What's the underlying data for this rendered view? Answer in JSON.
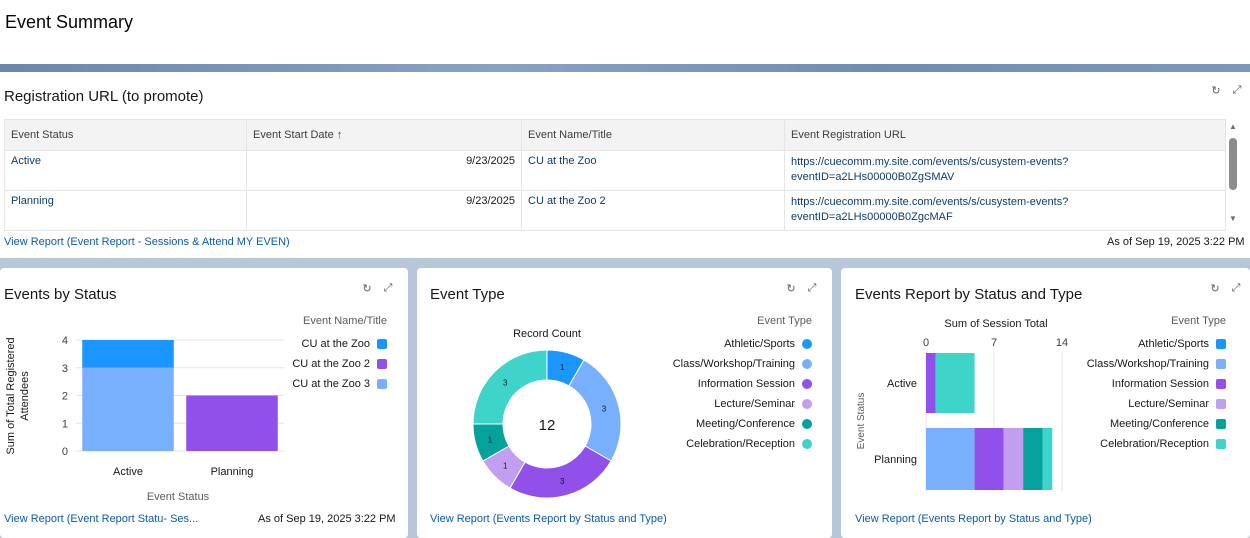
{
  "page": {
    "title": "Event Summary"
  },
  "icons": {
    "refresh": "refresh-icon",
    "expand": "expand-icon"
  },
  "registration": {
    "title": "Registration URL (to promote)",
    "columns": [
      "Event Status",
      "Event Start Date",
      "Event Name/Title",
      "Event Registration URL"
    ],
    "sort_indicator": "↑",
    "rows": [
      {
        "status": "Active",
        "start_date": "9/23/2025",
        "name": "CU at the Zoo",
        "url_line1": "https://cuecomm.my.site.com/events/s/cusystem-events?",
        "url_line2": "eventID=a2LHs00000B0ZgSMAV"
      },
      {
        "status": "Planning",
        "start_date": "9/23/2025",
        "name": "CU at the Zoo 2",
        "url_line1": "https://cuecomm.my.site.com/events/s/cusystem-events?",
        "url_line2": "eventID=a2LHs00000B0ZgcMAF"
      }
    ],
    "footer_link": "View Report (Event Report - Sessions & Attend MY EVEN)",
    "as_of": "As of Sep 19, 2025 3:22 PM"
  },
  "events_by_status": {
    "title": "Events by Status",
    "footer_link": "View Report (Event Report Statu- Ses...",
    "as_of": "As of Sep 19, 2025 3:22 PM",
    "chart_data": {
      "type": "bar",
      "stacked": true,
      "categories": [
        "Active",
        "Planning"
      ],
      "series": [
        {
          "name": "CU at the Zoo",
          "values": [
            1,
            0
          ],
          "color": "#1b96ff"
        },
        {
          "name": "CU at the Zoo 2",
          "values": [
            0,
            2
          ],
          "color": "#9050e9"
        },
        {
          "name": "CU at the Zoo 3",
          "values": [
            3,
            0
          ],
          "color": "#78b0fd"
        }
      ],
      "xlabel": "Event Status",
      "ylabel_line1": "Sum of Total Registered",
      "ylabel_line2": "Attendees",
      "yticks": [
        "0",
        "1",
        "2",
        "3",
        "4"
      ],
      "ylim": [
        0,
        4
      ],
      "legend_title": "Event Name/Title",
      "legend_placement": "right",
      "grid": true
    }
  },
  "event_type": {
    "title": "Event Type",
    "footer_link": "View Report (Events Report by Status and Type)",
    "chart_data": {
      "type": "pie",
      "donut": true,
      "title": "Record Count",
      "total": "12",
      "slices": [
        {
          "name": "Athletic/Sports",
          "value": 1,
          "label": "1",
          "color": "#1b96ff"
        },
        {
          "name": "Class/Workshop/Training",
          "value": 3,
          "label": "3",
          "color": "#78b0fd"
        },
        {
          "name": "Information Session",
          "value": 3,
          "label": "3",
          "color": "#9050e9"
        },
        {
          "name": "Lecture/Seminar",
          "value": 1,
          "label": "1",
          "color": "#c29ef1"
        },
        {
          "name": "Meeting/Conference",
          "value": 1,
          "label": "1",
          "color": "#04a29b"
        },
        {
          "name": "Celebration/Reception",
          "value": 3,
          "label": "3",
          "color": "#3fd4ca"
        }
      ],
      "legend_title": "Event Type",
      "legend_placement": "right"
    }
  },
  "status_type": {
    "title": "Events Report by Status and Type",
    "footer_link": "View Report (Events Report by Status and Type)",
    "chart_data": {
      "type": "bar",
      "orientation": "horizontal",
      "stacked": true,
      "title": "Sum of Session Total",
      "categories": [
        "Active",
        "Planning"
      ],
      "series": [
        {
          "name": "Athletic/Sports",
          "values": [
            0,
            0
          ],
          "color": "#1b96ff"
        },
        {
          "name": "Class/Workshop/Training",
          "values": [
            0,
            5
          ],
          "color": "#78b0fd"
        },
        {
          "name": "Information Session",
          "values": [
            1,
            3
          ],
          "color": "#9050e9"
        },
        {
          "name": "Lecture/Seminar",
          "values": [
            0,
            2
          ],
          "color": "#c29ef1"
        },
        {
          "name": "Meeting/Conference",
          "values": [
            0,
            2
          ],
          "color": "#04a29b"
        },
        {
          "name": "Celebration/Reception",
          "values": [
            4,
            1
          ],
          "color": "#3fd4ca"
        }
      ],
      "xticks": [
        "0",
        "7",
        "14"
      ],
      "xlim": [
        0,
        14
      ],
      "ylabel": "Event Status",
      "legend_title": "Event Type",
      "legend_placement": "right"
    }
  }
}
